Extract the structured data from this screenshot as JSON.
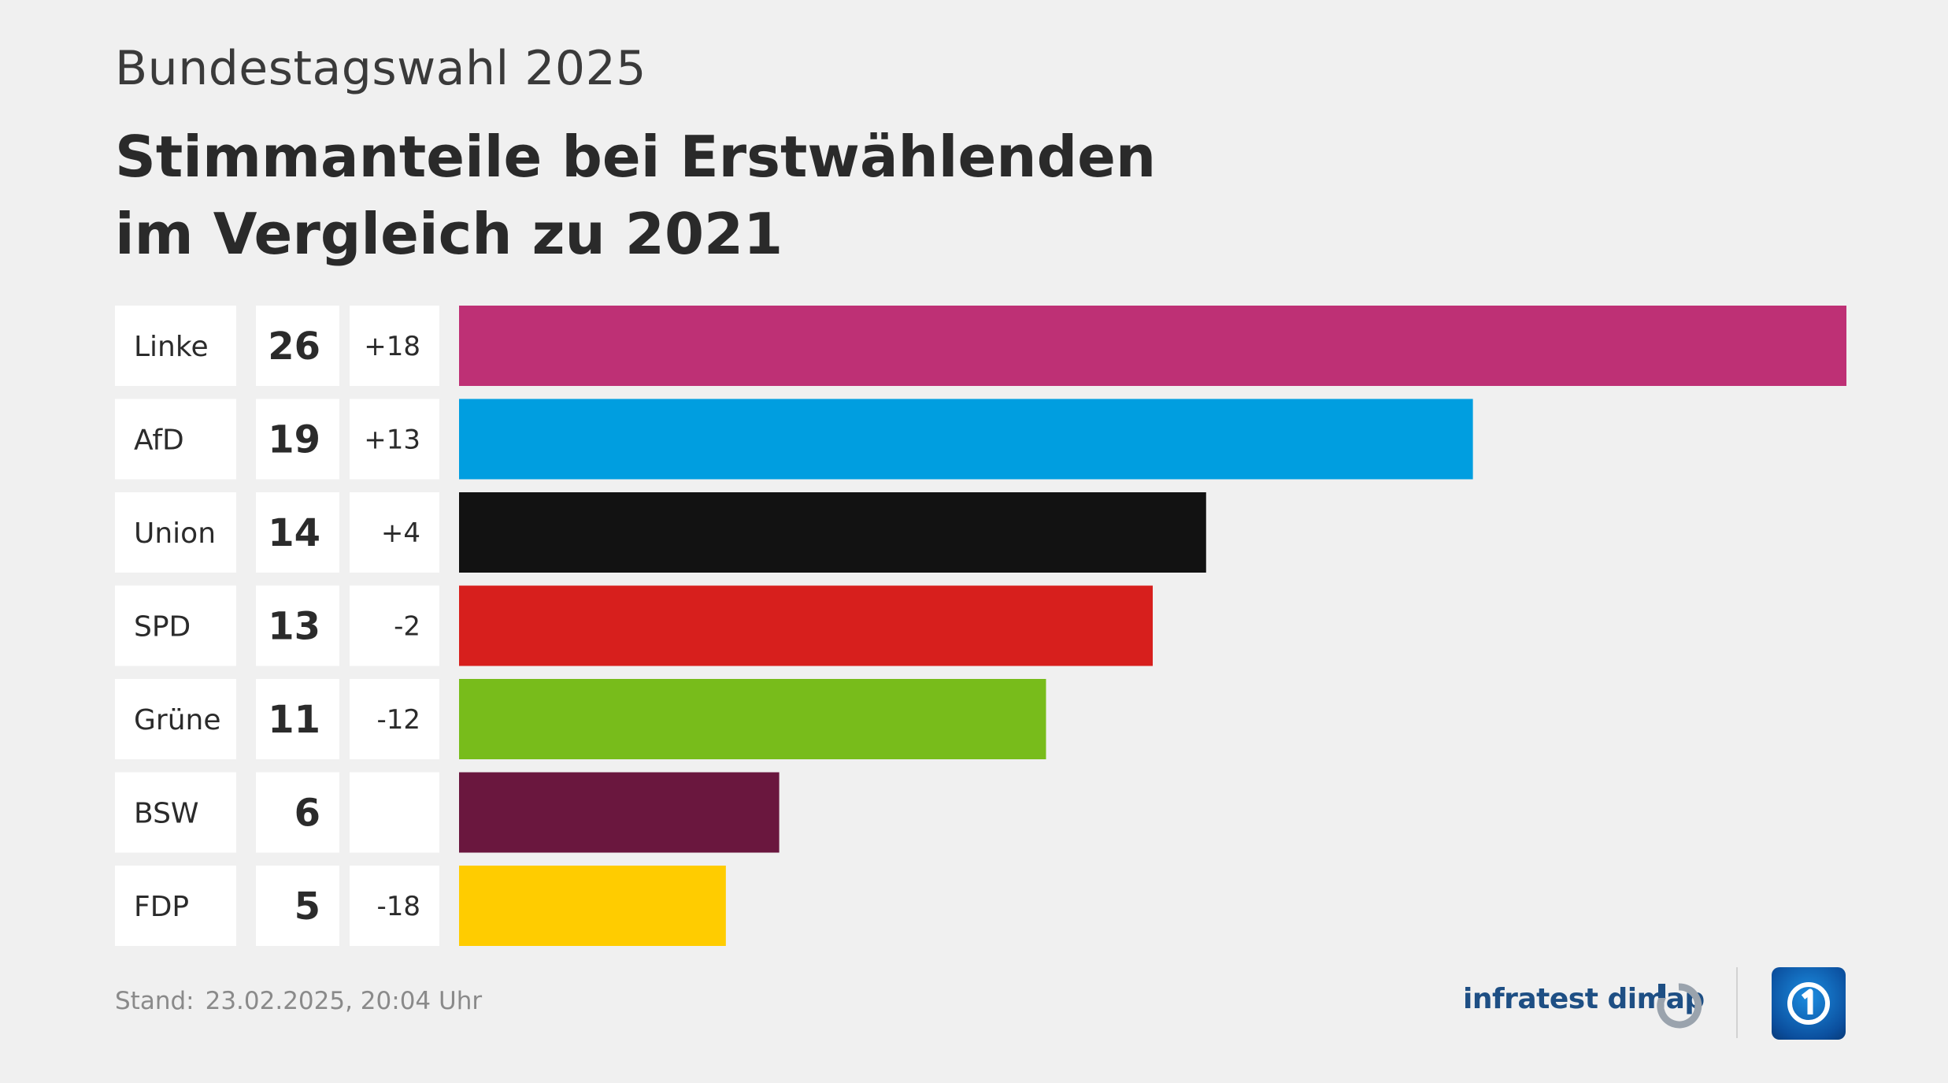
{
  "header": {
    "supertitle": "Bundestagswahl 2025",
    "title_line1": "Stimmanteile bei Erstwählenden",
    "title_line2": "im Vergleich zu 2021"
  },
  "chart_data": {
    "type": "bar",
    "orientation": "horizontal",
    "categories": [
      "Linke",
      "AfD",
      "Union",
      "SPD",
      "Grüne",
      "BSW",
      "FDP"
    ],
    "values": [
      26,
      19,
      14,
      13,
      11,
      6,
      5
    ],
    "change_vs_2021": [
      "+18",
      "+13",
      "+4",
      "-2",
      "-12",
      "",
      "-18"
    ],
    "colors": [
      "#be3075",
      "#009ee0",
      "#121212",
      "#d71f1d",
      "#78bc1b",
      "#6a173e",
      "#ffcc00"
    ],
    "xlim": [
      0,
      26
    ],
    "grid": false,
    "legend": "none"
  },
  "footer": {
    "stand_label": "Stand:",
    "stand_value": "23.02.2025, 20:04 Uhr",
    "brand": "infratest dimap",
    "brand_icon": "infratest-dimap-logo-icon",
    "broadcaster_icon": "ard-logo-icon"
  }
}
